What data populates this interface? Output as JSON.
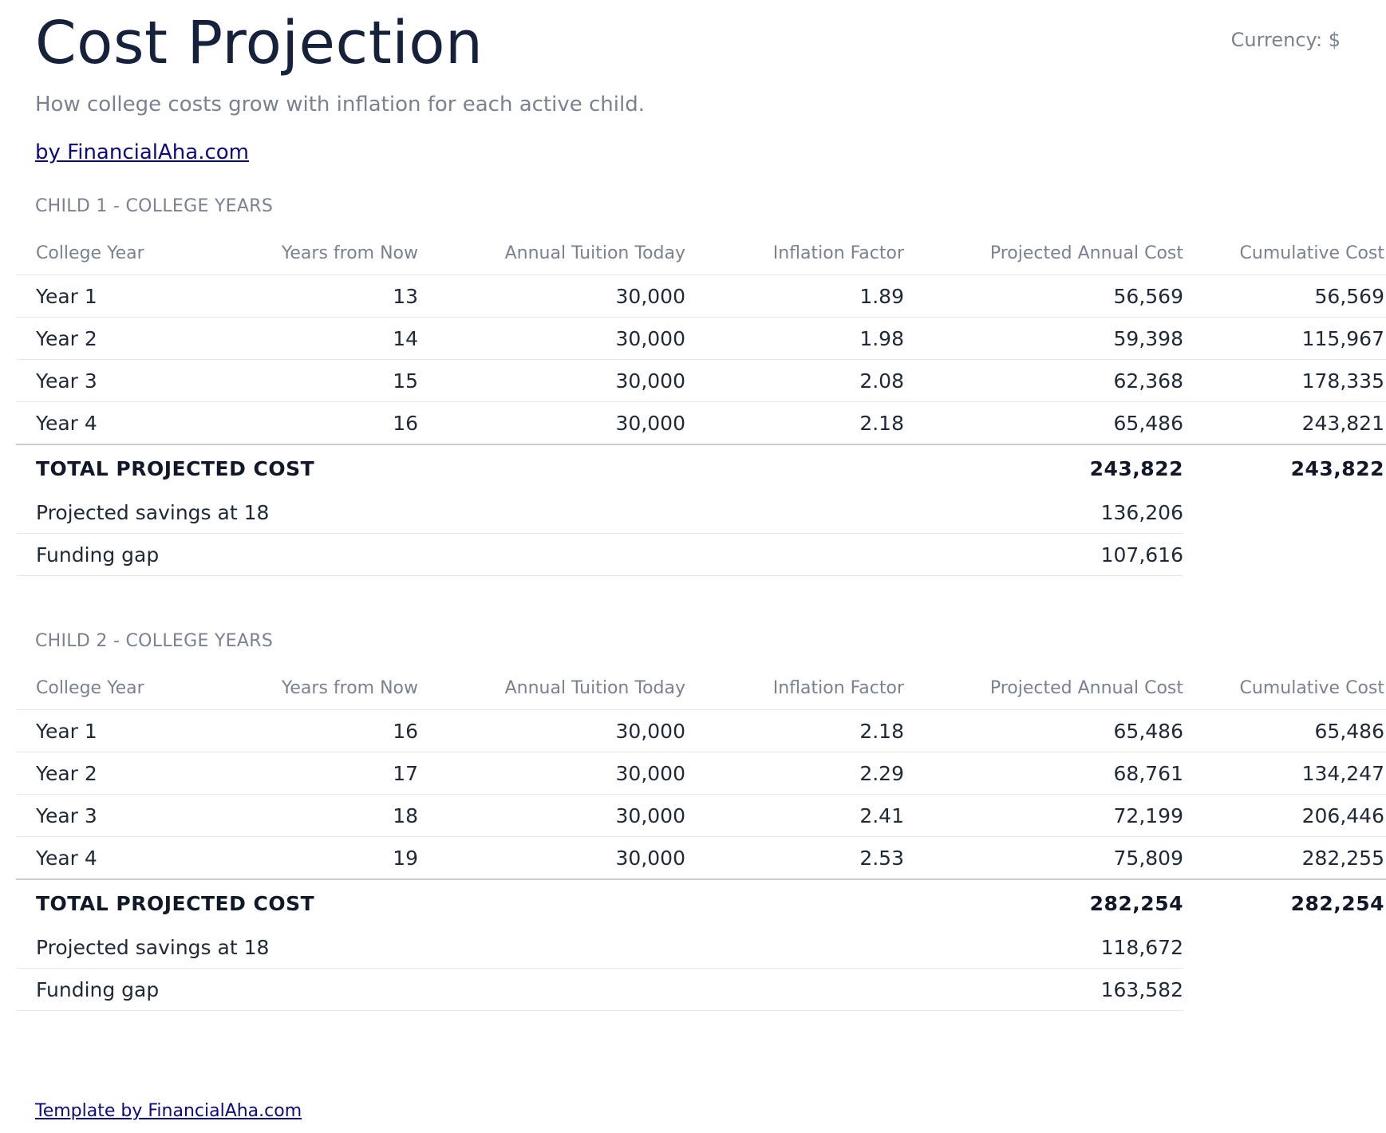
{
  "header": {
    "title": "Cost Projection",
    "currency": "Currency: $",
    "subtitle": "How college costs grow with inflation for each active child.",
    "byline": "by FinancialAha.com"
  },
  "columns": {
    "college_year": "College Year",
    "years_from_now": "Years from Now",
    "annual_tuition": "Annual Tuition Today",
    "inflation_factor": "Inflation Factor",
    "projected_cost": "Projected Annual Cost",
    "cumulative_cost": "Cumulative Cost"
  },
  "children": [
    {
      "title": "CHILD 1 - COLLEGE YEARS",
      "rows": [
        {
          "year": "Year 1",
          "years_from_now": "13",
          "tuition": "30,000",
          "inflation": "1.89",
          "projected": "56,569",
          "cumulative": "56,569"
        },
        {
          "year": "Year 2",
          "years_from_now": "14",
          "tuition": "30,000",
          "inflation": "1.98",
          "projected": "59,398",
          "cumulative": "115,967"
        },
        {
          "year": "Year 3",
          "years_from_now": "15",
          "tuition": "30,000",
          "inflation": "2.08",
          "projected": "62,368",
          "cumulative": "178,335"
        },
        {
          "year": "Year 4",
          "years_from_now": "16",
          "tuition": "30,000",
          "inflation": "2.18",
          "projected": "65,486",
          "cumulative": "243,821"
        }
      ],
      "total": {
        "label": "TOTAL PROJECTED COST",
        "projected": "243,822",
        "cumulative": "243,822"
      },
      "savings": {
        "label": "Projected savings at 18",
        "value": "136,206"
      },
      "gap": {
        "label": "Funding gap",
        "value": "107,616"
      }
    },
    {
      "title": "CHILD 2 - COLLEGE YEARS",
      "rows": [
        {
          "year": "Year 1",
          "years_from_now": "16",
          "tuition": "30,000",
          "inflation": "2.18",
          "projected": "65,486",
          "cumulative": "65,486"
        },
        {
          "year": "Year 2",
          "years_from_now": "17",
          "tuition": "30,000",
          "inflation": "2.29",
          "projected": "68,761",
          "cumulative": "134,247"
        },
        {
          "year": "Year 3",
          "years_from_now": "18",
          "tuition": "30,000",
          "inflation": "2.41",
          "projected": "72,199",
          "cumulative": "206,446"
        },
        {
          "year": "Year 4",
          "years_from_now": "19",
          "tuition": "30,000",
          "inflation": "2.53",
          "projected": "75,809",
          "cumulative": "282,255"
        }
      ],
      "total": {
        "label": "TOTAL PROJECTED COST",
        "projected": "282,254",
        "cumulative": "282,254"
      },
      "savings": {
        "label": "Projected savings at 18",
        "value": "118,672"
      },
      "gap": {
        "label": "Funding gap",
        "value": "163,582"
      }
    }
  ],
  "footer": {
    "link": "Template by FinancialAha.com"
  }
}
